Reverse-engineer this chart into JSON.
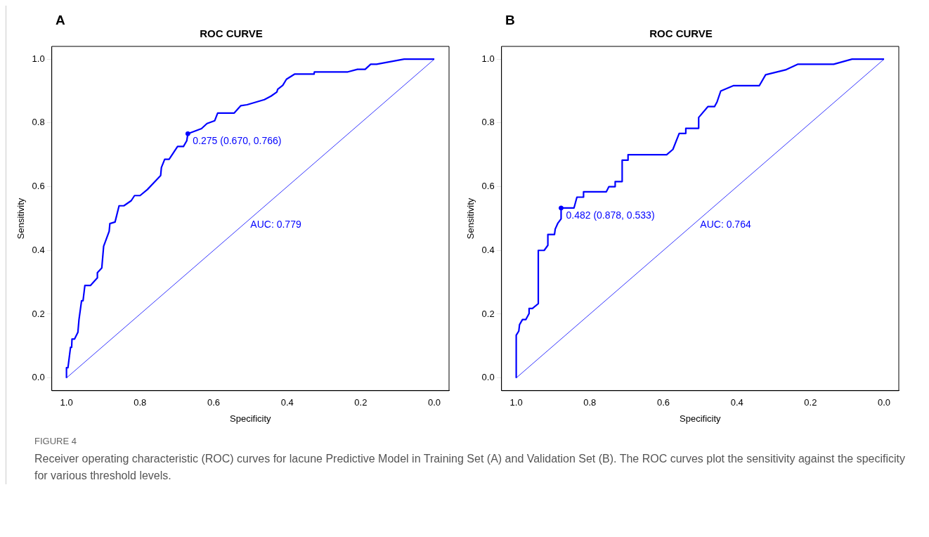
{
  "chart_data": [
    {
      "type": "line",
      "title": "ROC CURVE",
      "xlabel": "Specificity",
      "ylabel": "Sensitivity",
      "xlim": [
        1.04,
        -0.04
      ],
      "ylim": [
        -0.04,
        1.04
      ],
      "xticks": [
        {
          "value": 1,
          "label": "1.0"
        },
        {
          "value": 0.8,
          "label": "0.8"
        },
        {
          "value": 0.6,
          "label": "0.6"
        },
        {
          "value": 0.4,
          "label": "0.4"
        },
        {
          "value": 0.2,
          "label": "0.2"
        },
        {
          "value": 0,
          "label": "0.0"
        }
      ],
      "yticks": [
        {
          "value": 0,
          "label": "0.0"
        },
        {
          "value": 0.2,
          "label": "0.2"
        },
        {
          "value": 0.4,
          "label": "0.4"
        },
        {
          "value": 0.6,
          "label": "0.6"
        },
        {
          "value": 0.8,
          "label": "0.8"
        },
        {
          "value": 1,
          "label": "1.0"
        }
      ],
      "grid": false,
      "legend": false,
      "series": [
        {
          "type": "line",
          "color": "#0000ff",
          "marker": "none",
          "line_style": "solid",
          "x": [
            1,
            1,
            0.996,
            0.989,
            0.986,
            0.985,
            0.978,
            0.969,
            0.966,
            0.959,
            0.955,
            0.95,
            0.935,
            0.916,
            0.916,
            0.904,
            0.899,
            0.884,
            0.882,
            0.868,
            0.857,
            0.844,
            0.824,
            0.815,
            0.8,
            0.78,
            0.744,
            0.742,
            0.733,
            0.721,
            0.698,
            0.682,
            0.673,
            0.67,
            0.633,
            0.618,
            0.597,
            0.589,
            0.544,
            0.526,
            0.509,
            0.462,
            0.444,
            0.428,
            0.426,
            0.412,
            0.402,
            0.38,
            0.327,
            0.326,
            0.235,
            0.209,
            0.188,
            0.173,
            0.157,
            0.082,
            0
          ],
          "values": [
            0,
            0.032,
            0.032,
            0.096,
            0.096,
            0.122,
            0.122,
            0.143,
            0.183,
            0.242,
            0.242,
            0.29,
            0.29,
            0.314,
            0.33,
            0.345,
            0.413,
            0.46,
            0.484,
            0.489,
            0.54,
            0.54,
            0.556,
            0.572,
            0.572,
            0.591,
            0.635,
            0.66,
            0.686,
            0.686,
            0.726,
            0.726,
            0.744,
            0.766,
            0.782,
            0.798,
            0.807,
            0.831,
            0.831,
            0.854,
            0.857,
            0.873,
            0.884,
            0.897,
            0.905,
            0.918,
            0.937,
            0.953,
            0.953,
            0.96,
            0.96,
            0.968,
            0.968,
            0.984,
            0.984,
            1,
            1
          ]
        },
        {
          "type": "line",
          "color": "#0000ff",
          "marker": "none",
          "line_style": "solid",
          "x": [
            1,
            0
          ],
          "values": [
            0,
            1
          ]
        },
        {
          "type": "scatter",
          "color": "#0000ff",
          "marker": "circle",
          "x": [
            0.67
          ],
          "values": [
            0.766
          ]
        }
      ],
      "annotations": [
        "A",
        "AUC: 0.779",
        {
          "text": "0.275 (0.670, 0.766)",
          "x": 0.67,
          "y": 0.766
        },
        "FIGURE 4",
        "Receiver operating characteristic (ROC) curves for lacune Predictive Model in Training Set (A) and Validation Set (B). The ROC curves plot the sensitivity against the specificity for various threshold levels."
      ]
    },
    {
      "type": "line",
      "title": "ROC CURVE",
      "xlabel": "Specificity",
      "ylabel": "Sensitivity",
      "xlim": [
        1.04,
        -0.04
      ],
      "ylim": [
        -0.04,
        1.04
      ],
      "xticks": [
        {
          "value": 1,
          "label": "1.0"
        },
        {
          "value": 0.8,
          "label": "0.8"
        },
        {
          "value": 0.6,
          "label": "0.6"
        },
        {
          "value": 0.4,
          "label": "0.4"
        },
        {
          "value": 0.2,
          "label": "0.2"
        },
        {
          "value": 0,
          "label": "0.0"
        }
      ],
      "yticks": [
        {
          "value": 0,
          "label": "0.0"
        },
        {
          "value": 0.2,
          "label": "0.2"
        },
        {
          "value": 0.4,
          "label": "0.4"
        },
        {
          "value": 0.6,
          "label": "0.6"
        },
        {
          "value": 0.8,
          "label": "0.8"
        },
        {
          "value": 1,
          "label": "1.0"
        }
      ],
      "grid": false,
      "legend": false,
      "series": [
        {
          "type": "line",
          "color": "#0000ff",
          "marker": "none",
          "line_style": "solid",
          "x": [
            1,
            1,
            0.993,
            0.991,
            0.983,
            0.974,
            0.965,
            0.965,
            0.956,
            0.94,
            0.94,
            0.924,
            0.914,
            0.914,
            0.896,
            0.894,
            0.887,
            0.878,
            0.878,
            0.843,
            0.835,
            0.817,
            0.817,
            0.755,
            0.748,
            0.731,
            0.731,
            0.712,
            0.712,
            0.696,
            0.696,
            0.591,
            0.574,
            0.557,
            0.539,
            0.539,
            0.504,
            0.504,
            0.479,
            0.461,
            0.454,
            0.444,
            0.409,
            0.339,
            0.322,
            0.266,
            0.235,
            0.137,
            0.087,
            0
          ],
          "values": [
            0,
            0.134,
            0.147,
            0.167,
            0.183,
            0.183,
            0.202,
            0.218,
            0.218,
            0.233,
            0.4,
            0.4,
            0.416,
            0.45,
            0.45,
            0.467,
            0.485,
            0.499,
            0.533,
            0.533,
            0.567,
            0.567,
            0.584,
            0.584,
            0.6,
            0.6,
            0.616,
            0.616,
            0.683,
            0.683,
            0.7,
            0.7,
            0.717,
            0.767,
            0.767,
            0.783,
            0.783,
            0.817,
            0.851,
            0.851,
            0.866,
            0.9,
            0.917,
            0.917,
            0.951,
            0.967,
            0.984,
            0.984,
            1,
            1
          ]
        },
        {
          "type": "line",
          "color": "#0000ff",
          "marker": "none",
          "line_style": "solid",
          "x": [
            1,
            0
          ],
          "values": [
            0,
            1
          ]
        },
        {
          "type": "scatter",
          "color": "#0000ff",
          "marker": "circle",
          "x": [
            0.878
          ],
          "values": [
            0.533
          ]
        }
      ],
      "annotations": [
        "B",
        "AUC: 0.764",
        {
          "text": "0.482 (0.878, 0.533)",
          "x": 0.878,
          "y": 0.533
        }
      ]
    }
  ]
}
